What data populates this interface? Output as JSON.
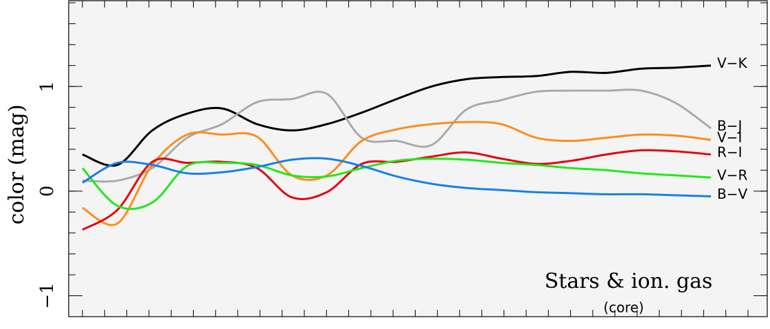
{
  "chart_data": {
    "type": "line",
    "annotation": "Stars & ion. gas",
    "annotation_sub": "(core)",
    "y_label": "color (mag)",
    "ylim": [
      -1.2,
      1.82
    ],
    "yticks": [
      {
        "value": -1,
        "label": "−1"
      },
      0,
      1
    ],
    "categories": [
      null,
      null,
      null,
      null,
      null,
      null,
      null,
      null,
      null,
      null,
      null,
      null,
      null,
      null,
      null,
      null,
      null,
      null,
      null
    ],
    "series": [
      {
        "name": "V−K",
        "color": "#000000",
        "values": [
          0.35,
          0.25,
          0.58,
          0.74,
          0.79,
          0.64,
          0.58,
          0.64,
          0.75,
          0.88,
          1.0,
          1.07,
          1.09,
          1.1,
          1.14,
          1.13,
          1.17,
          1.18,
          1.2
        ]
      },
      {
        "name": "B−J",
        "color": "#aaaaaa",
        "values": [
          0.1,
          0.1,
          0.22,
          0.51,
          0.64,
          0.85,
          0.88,
          0.93,
          0.51,
          0.48,
          0.44,
          0.78,
          0.87,
          0.95,
          0.96,
          0.96,
          0.96,
          0.84,
          0.6
        ]
      },
      {
        "name": "V−I",
        "color": "#ff8c1a",
        "values": [
          -0.16,
          -0.31,
          0.25,
          0.54,
          0.54,
          0.52,
          0.15,
          0.15,
          0.48,
          0.59,
          0.64,
          0.66,
          0.64,
          0.51,
          0.48,
          0.51,
          0.54,
          0.53,
          0.49
        ]
      },
      {
        "name": "R−I",
        "color": "#e8000b",
        "values": [
          -0.37,
          -0.18,
          0.28,
          0.27,
          0.28,
          0.22,
          -0.06,
          -0.01,
          0.26,
          0.28,
          0.33,
          0.37,
          0.31,
          0.26,
          0.29,
          0.35,
          0.39,
          0.38,
          0.35
        ]
      },
      {
        "name": "V−R",
        "color": "#22e81a",
        "values": [
          0.22,
          -0.14,
          -0.11,
          0.24,
          0.27,
          0.25,
          0.15,
          0.14,
          0.22,
          0.29,
          0.31,
          0.3,
          0.27,
          0.25,
          0.22,
          0.2,
          0.17,
          0.15,
          0.13
        ]
      },
      {
        "name": "B−V",
        "color": "#1a7fe8",
        "values": [
          0.08,
          0.27,
          0.25,
          0.17,
          0.18,
          0.23,
          0.3,
          0.31,
          0.24,
          0.14,
          0.07,
          0.03,
          0.01,
          -0.01,
          -0.02,
          -0.03,
          -0.03,
          -0.04,
          -0.05
        ]
      }
    ]
  }
}
